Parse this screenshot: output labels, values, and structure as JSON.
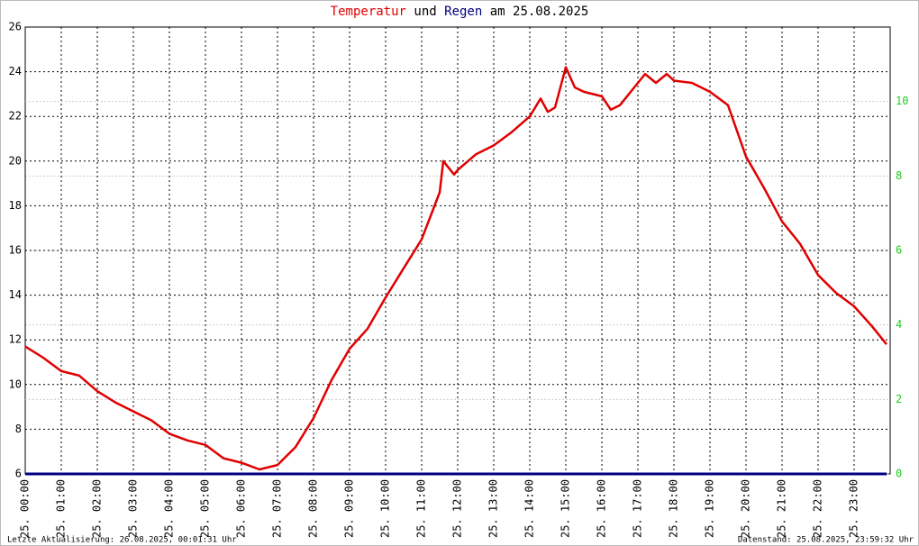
{
  "chart_data": {
    "type": "line",
    "title": [
      "Temperatur",
      "und",
      "Regen",
      "am 25.08.2025"
    ],
    "xlim": [
      0,
      24
    ],
    "xticks": [
      {
        "value": 0,
        "label": "25. 00:00"
      },
      {
        "value": 1,
        "label": "25. 01:00"
      },
      {
        "value": 2,
        "label": "25. 02:00"
      },
      {
        "value": 3,
        "label": "25. 03:00"
      },
      {
        "value": 4,
        "label": "25. 04:00"
      },
      {
        "value": 5,
        "label": "25. 05:00"
      },
      {
        "value": 6,
        "label": "25. 06:00"
      },
      {
        "value": 7,
        "label": "25. 07:00"
      },
      {
        "value": 8,
        "label": "25. 08:00"
      },
      {
        "value": 9,
        "label": "25. 09:00"
      },
      {
        "value": 10,
        "label": "25. 10:00"
      },
      {
        "value": 11,
        "label": "25. 11:00"
      },
      {
        "value": 12,
        "label": "25. 12:00"
      },
      {
        "value": 13,
        "label": "25. 13:00"
      },
      {
        "value": 14,
        "label": "25. 14:00"
      },
      {
        "value": 15,
        "label": "25. 15:00"
      },
      {
        "value": 16,
        "label": "25. 16:00"
      },
      {
        "value": 17,
        "label": "25. 17:00"
      },
      {
        "value": 18,
        "label": "25. 18:00"
      },
      {
        "value": 19,
        "label": "25. 19:00"
      },
      {
        "value": 20,
        "label": "25. 20:00"
      },
      {
        "value": 21,
        "label": "25. 21:00"
      },
      {
        "value": 22,
        "label": "25. 22:00"
      },
      {
        "value": 23,
        "label": "25. 23:00"
      }
    ],
    "ylim": [
      6,
      26
    ],
    "yticks": [
      6,
      8,
      10,
      12,
      14,
      16,
      18,
      20,
      22,
      24,
      26
    ],
    "y2lim": [
      0,
      12
    ],
    "y2ticks": [
      0,
      2,
      4,
      6,
      8,
      10
    ],
    "grid": true,
    "series": [
      {
        "name": "Temperatur",
        "color": "#e00000",
        "x": [
          0,
          0.5,
          1,
          1.5,
          2,
          2.5,
          3,
          3.5,
          4,
          4.5,
          5,
          5.5,
          6,
          6.5,
          7,
          7.5,
          8,
          8.5,
          9,
          9.5,
          10,
          10.5,
          11,
          11.5,
          11.6,
          11.9,
          12,
          12.5,
          13,
          13.5,
          14,
          14.3,
          14.5,
          14.7,
          15,
          15.25,
          15.5,
          16,
          16.25,
          16.5,
          17,
          17.2,
          17.5,
          17.8,
          18,
          18.5,
          19,
          19.5,
          20,
          20.5,
          21,
          21.5,
          22,
          22.5,
          23,
          23.5,
          23.9
        ],
        "values": [
          11.7,
          11.2,
          10.6,
          10.4,
          9.7,
          9.2,
          8.8,
          8.4,
          7.8,
          7.5,
          7.3,
          6.7,
          6.5,
          6.2,
          6.4,
          7.2,
          8.5,
          10.2,
          11.6,
          12.5,
          13.9,
          15.2,
          16.5,
          18.6,
          20.0,
          19.4,
          19.6,
          20.3,
          20.7,
          21.3,
          22.0,
          22.8,
          22.2,
          22.4,
          24.2,
          23.3,
          23.1,
          22.9,
          22.3,
          22.5,
          23.5,
          23.9,
          23.5,
          23.9,
          23.6,
          23.5,
          23.1,
          22.5,
          20.2,
          18.8,
          17.3,
          16.3,
          14.9,
          14.1,
          13.5,
          12.6,
          11.8
        ]
      },
      {
        "name": "Regen",
        "color": "#000080",
        "axis": "y2",
        "x": [
          0,
          23.9
        ],
        "values": [
          0,
          0
        ]
      }
    ],
    "footer_left": "Letzte Aktualisierung: 26.08.2025, 00:01:31 Uhr",
    "footer_right": "Datenstand: 25.08.2025, 23:59:32 Uhr"
  }
}
